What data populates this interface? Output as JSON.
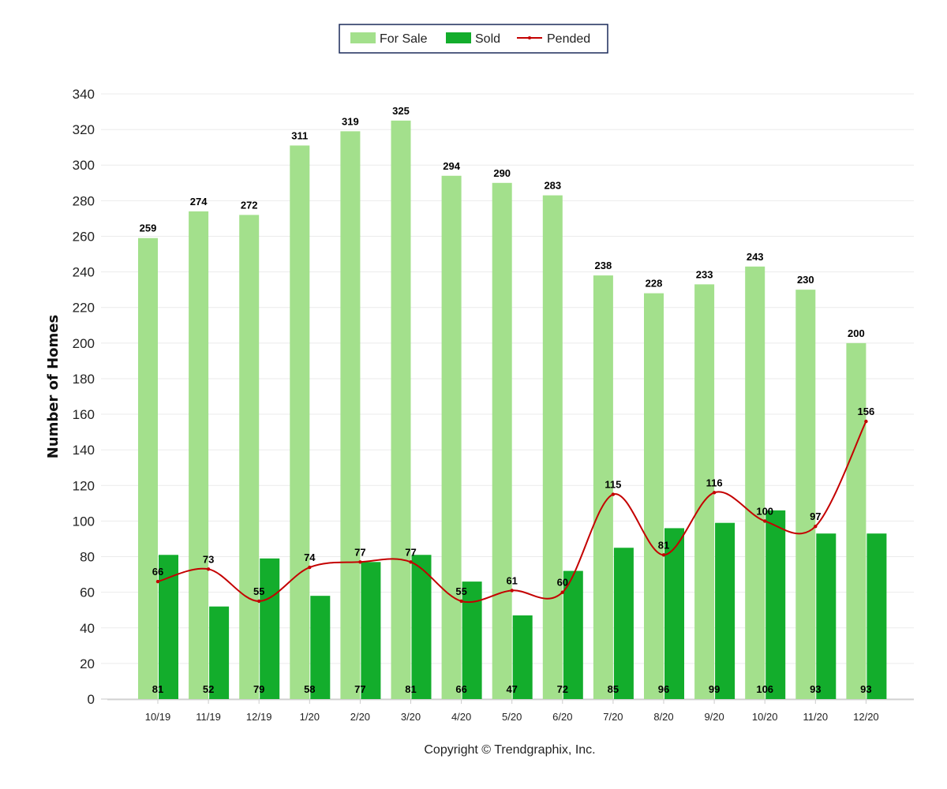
{
  "chart_data": {
    "type": "bar",
    "categories": [
      "10/19",
      "11/19",
      "12/19",
      "1/20",
      "2/20",
      "3/20",
      "4/20",
      "5/20",
      "6/20",
      "7/20",
      "8/20",
      "9/20",
      "10/20",
      "11/20",
      "12/20"
    ],
    "series": [
      {
        "name": "For Sale",
        "type": "bar",
        "color": "#a3e08c",
        "values": [
          259,
          274,
          272,
          311,
          319,
          325,
          294,
          290,
          283,
          238,
          228,
          233,
          243,
          230,
          200
        ]
      },
      {
        "name": "Sold",
        "type": "bar",
        "color": "#13ad2c",
        "values": [
          81,
          52,
          79,
          58,
          77,
          81,
          66,
          47,
          72,
          85,
          96,
          99,
          106,
          93,
          93
        ]
      },
      {
        "name": "Pended",
        "type": "line",
        "color": "#c40000",
        "values": [
          66,
          73,
          55,
          74,
          77,
          77,
          55,
          61,
          60,
          115,
          81,
          116,
          100,
          97,
          156
        ]
      }
    ],
    "ylabel": "Number of Homes",
    "xlabel": "",
    "ylim": [
      0,
      340
    ],
    "yticks": [
      "0",
      "20",
      "40",
      "60",
      "80",
      "100",
      "120",
      "140",
      "160",
      "180",
      "200",
      "220",
      "240",
      "260",
      "280",
      "300",
      "320",
      "340"
    ],
    "grid": true,
    "legend_position": "top-center"
  },
  "footer": {
    "copyright": "Copyright © Trendgraphix, Inc."
  }
}
